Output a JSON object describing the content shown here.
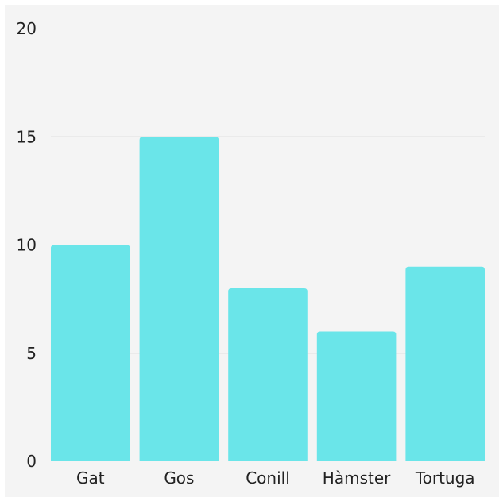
{
  "chart_data": {
    "type": "bar",
    "categories": [
      "Gat",
      "Gos",
      "Conill",
      "Hàmster",
      "Tortuga"
    ],
    "values": [
      10,
      15,
      8,
      6,
      9
    ],
    "title": "",
    "xlabel": "",
    "ylabel": "",
    "ylim": [
      0,
      20
    ],
    "yticks": [
      0,
      5,
      10,
      15,
      20
    ],
    "grid": true,
    "legend": "none"
  },
  "colors": {
    "bar": "#6ae5e9",
    "grid": "#cccccc",
    "background": "#f4f4f4",
    "text": "#222222"
  }
}
